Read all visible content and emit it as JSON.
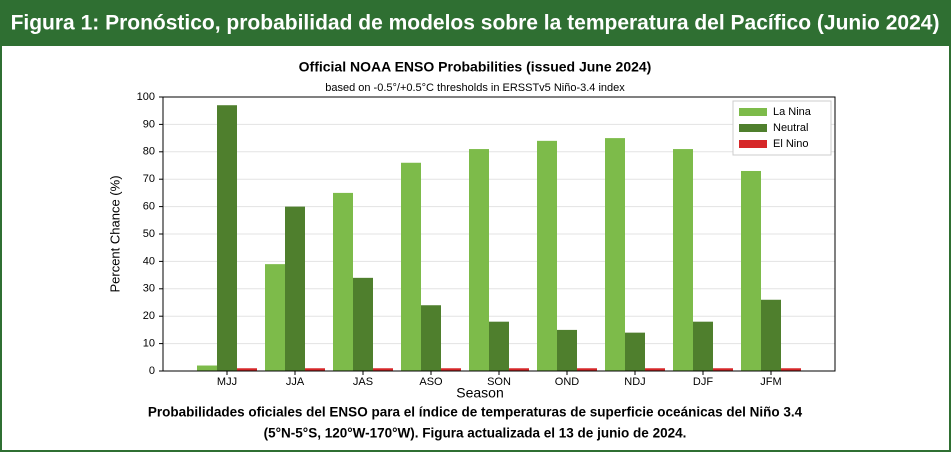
{
  "header": {
    "title": "Figura 1: Pronóstico, probabilidad de modelos sobre la temperatura del Pacífico (Junio 2024)"
  },
  "chart_data": {
    "type": "bar",
    "title": "Official NOAA ENSO Probabilities (issued June 2024)",
    "subtitle": "based on -0.5°/+0.5°C thresholds in ERSSTv5 Niño-3.4 index",
    "x_label": "Season",
    "y_label": "Percent Chance (%)",
    "categories": [
      "MJJ",
      "JJA",
      "JAS",
      "ASO",
      "SON",
      "OND",
      "NDJ",
      "DJF",
      "JFM"
    ],
    "series": [
      {
        "name": "La Nina",
        "color": "#7dbb4a",
        "values": [
          2,
          39,
          65,
          76,
          81,
          84,
          85,
          81,
          73
        ]
      },
      {
        "name": "Neutral",
        "color": "#4f7f2d",
        "values": [
          97,
          60,
          34,
          24,
          18,
          15,
          14,
          18,
          26
        ]
      },
      {
        "name": "El Nino",
        "color": "#d62728",
        "values": [
          1,
          1,
          1,
          1,
          1,
          1,
          1,
          1,
          1
        ]
      }
    ],
    "ylim": [
      0,
      100
    ],
    "yticks": [
      0,
      10,
      20,
      30,
      40,
      50,
      60,
      70,
      80,
      90,
      100
    ],
    "grid": true,
    "legend": "upper right"
  },
  "caption": [
    "Probabilidades oficiales del ENSO para el índice de temperaturas de superficie oceánicas del Niño 3.4",
    "(5°N-5°S, 120°W-170°W). Figura actualizada el 13 de junio de 2024."
  ]
}
